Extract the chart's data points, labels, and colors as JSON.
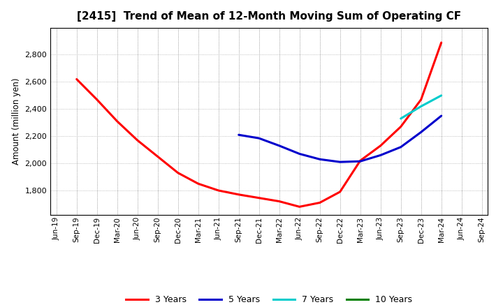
{
  "title": "[2415]  Trend of Mean of 12-Month Moving Sum of Operating CF",
  "ylabel": "Amount (million yen)",
  "background_color": "#ffffff",
  "plot_background": "#ffffff",
  "grid_color": "#999999",
  "ylim": [
    1620,
    3000
  ],
  "yticks": [
    1800,
    2000,
    2200,
    2400,
    2600,
    2800
  ],
  "x_labels": [
    "Jun-19",
    "Sep-19",
    "Dec-19",
    "Mar-20",
    "Jun-20",
    "Sep-20",
    "Dec-20",
    "Mar-21",
    "Jun-21",
    "Sep-21",
    "Dec-21",
    "Mar-22",
    "Jun-22",
    "Sep-22",
    "Dec-22",
    "Mar-23",
    "Jun-23",
    "Sep-23",
    "Dec-23",
    "Mar-24",
    "Jun-24",
    "Sep-24"
  ],
  "series_3yr": {
    "label": "3 Years",
    "color": "#ff0000",
    "x": [
      1,
      2,
      3,
      4,
      5,
      6,
      7,
      8,
      9,
      10,
      11,
      12,
      13,
      14,
      15,
      16,
      17,
      18,
      19
    ],
    "y": [
      2620,
      2470,
      2310,
      2170,
      2050,
      1930,
      1850,
      1800,
      1770,
      1745,
      1720,
      1680,
      1710,
      1790,
      2020,
      2130,
      2270,
      2470,
      2890
    ]
  },
  "series_5yr": {
    "label": "5 Years",
    "color": "#0000cc",
    "x": [
      9,
      10,
      11,
      12,
      13,
      14,
      15,
      16,
      17,
      18,
      19
    ],
    "y": [
      2210,
      2185,
      2130,
      2070,
      2030,
      2010,
      2015,
      2060,
      2120,
      2230,
      2350
    ]
  },
  "series_7yr": {
    "label": "7 Years",
    "color": "#00cccc",
    "x": [
      17,
      18,
      19
    ],
    "y": [
      2330,
      2420,
      2500
    ]
  },
  "series_10yr": {
    "label": "10 Years",
    "color": "#008000",
    "x": [],
    "y": []
  },
  "legend_colors": [
    "#ff0000",
    "#0000cc",
    "#00cccc",
    "#008000"
  ],
  "legend_labels": [
    "3 Years",
    "5 Years",
    "7 Years",
    "10 Years"
  ]
}
